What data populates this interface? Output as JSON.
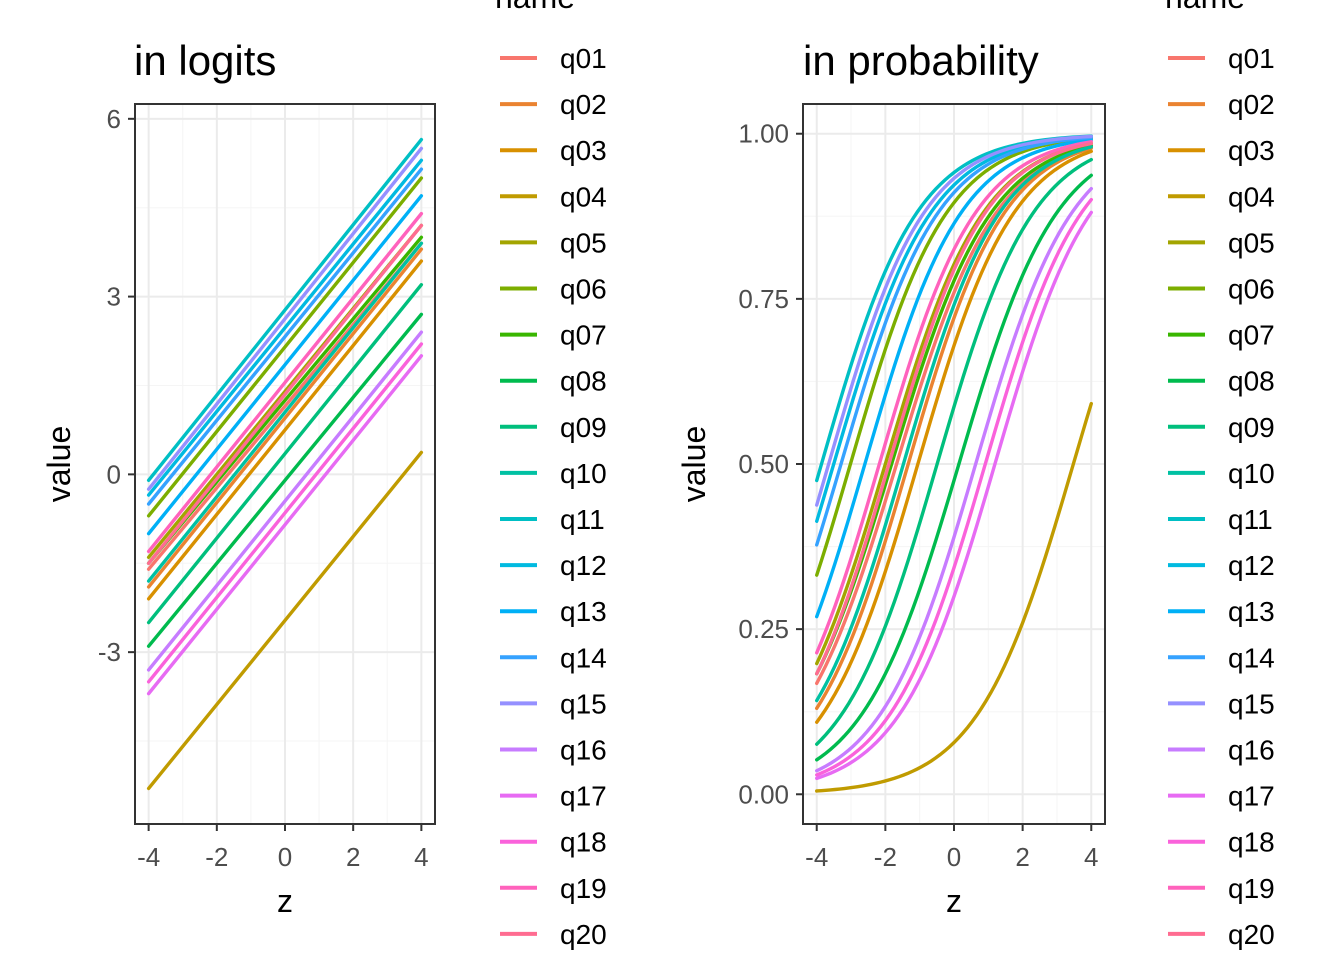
{
  "chart_data": [
    {
      "type": "line",
      "title": "in logits",
      "xlabel": "z",
      "ylabel": "value",
      "xlim": [
        -4.4,
        4.4
      ],
      "ylim": [
        -5.9,
        6.25
      ],
      "x_ticks": [
        -4,
        -2,
        0,
        2,
        4
      ],
      "x_tick_labels": [
        "-4",
        "-2",
        "0",
        "2",
        "4"
      ],
      "y_ticks": [
        -3,
        0,
        3,
        6
      ],
      "y_tick_labels": [
        "-3",
        "0",
        "3",
        "6"
      ],
      "x_minor_ticks": [
        -3,
        -1,
        1,
        3
      ],
      "y_minor_ticks": [
        -4.5,
        -1.5,
        1.5,
        4.5
      ],
      "grid": true,
      "legend_position": "right",
      "legend_title": "name",
      "x": [
        -4,
        4
      ],
      "series": [
        {
          "name": "q01",
          "values": [
            -1.6,
            3.9
          ]
        },
        {
          "name": "q02",
          "values": [
            -1.9,
            3.8
          ]
        },
        {
          "name": "q03",
          "values": [
            -2.1,
            3.6
          ]
        },
        {
          "name": "q04",
          "values": [
            -5.3,
            0.37
          ]
        },
        {
          "name": "q05",
          "values": [
            -1.4,
            4.2
          ]
        },
        {
          "name": "q06",
          "values": [
            -0.7,
            5.0
          ]
        },
        {
          "name": "q07",
          "values": [
            -1.5,
            4.0
          ]
        },
        {
          "name": "q08",
          "values": [
            -2.9,
            2.7
          ]
        },
        {
          "name": "q09",
          "values": [
            -2.5,
            3.2
          ]
        },
        {
          "name": "q10",
          "values": [
            -1.8,
            3.9
          ]
        },
        {
          "name": "q11",
          "values": [
            -0.1,
            5.65
          ]
        },
        {
          "name": "q12",
          "values": [
            -0.35,
            5.3
          ]
        },
        {
          "name": "q13",
          "values": [
            -1.0,
            4.7
          ]
        },
        {
          "name": "q14",
          "values": [
            -0.5,
            5.15
          ]
        },
        {
          "name": "q15",
          "values": [
            -0.25,
            5.5
          ]
        },
        {
          "name": "q16",
          "values": [
            -3.3,
            2.4
          ]
        },
        {
          "name": "q17",
          "values": [
            -3.7,
            2.0
          ]
        },
        {
          "name": "q18",
          "values": [
            -3.5,
            2.2
          ]
        },
        {
          "name": "q19",
          "values": [
            -1.3,
            4.4
          ]
        },
        {
          "name": "q20",
          "values": [
            -1.5,
            4.2
          ]
        }
      ]
    },
    {
      "type": "line",
      "title": "in probability",
      "xlabel": "z",
      "ylabel": "value",
      "xlim": [
        -4.4,
        4.4
      ],
      "ylim": [
        -0.045,
        1.045
      ],
      "x_ticks": [
        -4,
        -2,
        0,
        2,
        4
      ],
      "x_tick_labels": [
        "-4",
        "-2",
        "0",
        "2",
        "4"
      ],
      "y_ticks": [
        0,
        0.25,
        0.5,
        0.75,
        1
      ],
      "y_tick_labels": [
        "0.00",
        "0.25",
        "0.50",
        "0.75",
        "1.00"
      ],
      "x_minor_ticks": [
        -3,
        -1,
        1,
        3
      ],
      "y_minor_ticks": [
        0.125,
        0.375,
        0.625,
        0.875
      ],
      "grid": true,
      "legend_position": "right",
      "legend_title": "name",
      "note_curves": "inverse-logit of the series in the first chart",
      "x": [
        -4,
        4
      ]
    }
  ],
  "series_colors": [
    "#F8766D",
    "#EA8331",
    "#D89000",
    "#C09B00",
    "#A3A500",
    "#7CAE00",
    "#39B600",
    "#00BB4E",
    "#00BF7D",
    "#00C1A3",
    "#00BFC4",
    "#00BAE0",
    "#00B0F6",
    "#35A2FF",
    "#9590FF",
    "#C77CFF",
    "#E76BF3",
    "#FA62DB",
    "#FF62BC",
    "#FF6C91"
  ],
  "theme": {
    "panel_border": "#333333",
    "grid_major": "#EBEBEB",
    "grid_minor": "#F5F5F5",
    "axis_text": "#4D4D4D",
    "title": "#000000"
  }
}
